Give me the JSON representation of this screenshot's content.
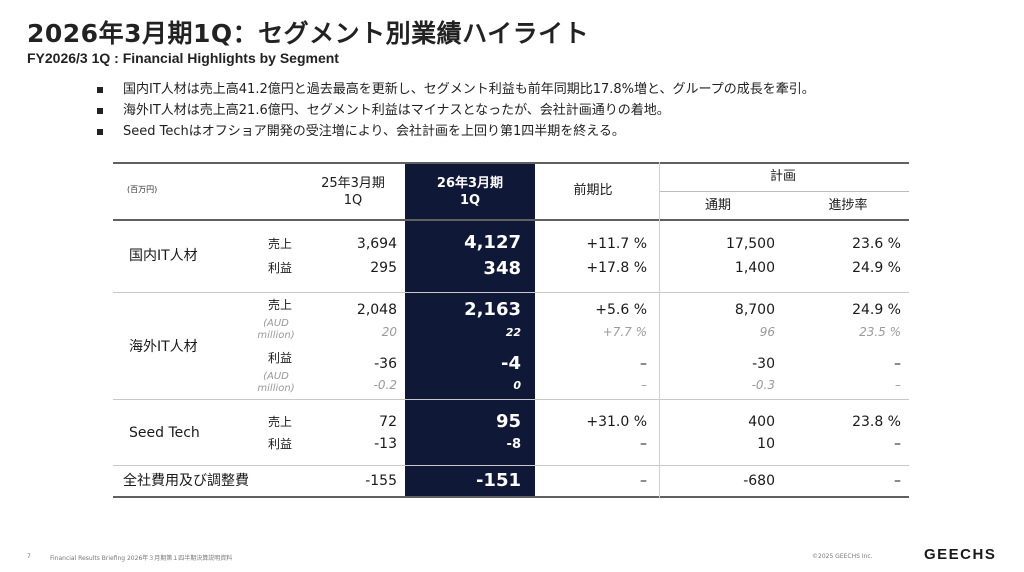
{
  "title": "2026年3月期1Q：セグメント別業績ハイライト",
  "subtitle": "FY2026/3 1Q : Financial Highlights by Segment",
  "bullets": [
    "国内IT人材は売上高41.2億円と過去最高を更新し、セグメント利益も前年同期比17.8%増と、グループの成長を牽引。",
    "海外IT人材は売上高21.6億円、セグメント利益はマイナスとなったが、会社計画通りの着地。",
    "Seed Techはオフショア開発の受注増により、会社計画を上回り第1四半期を終える。"
  ],
  "table": {
    "unit": "(百万円)",
    "headers": {
      "prev_line1": "25年3月期",
      "prev_line2": "1Q",
      "curr_line1": "26年3月期",
      "curr_line2": "1Q",
      "yoy": "前期比",
      "plan": "計画",
      "plan_full": "通期",
      "progress": "進捗率"
    },
    "segments": {
      "domestic": {
        "name": "国内IT人材",
        "sales": {
          "label": "売上",
          "prev": "3,694",
          "curr": "4,127",
          "yoy": "+11.7 %",
          "plan": "17,500",
          "progress": "23.6 %"
        },
        "profit": {
          "label": "利益",
          "prev": "295",
          "curr": "348",
          "yoy": "+17.8 %",
          "plan": "1,400",
          "progress": "24.9 %"
        }
      },
      "overseas": {
        "name": "海外IT人材",
        "sales": {
          "label": "売上",
          "prev": "2,048",
          "curr": "2,163",
          "yoy": "+5.6 %",
          "plan": "8,700",
          "progress": "24.9 %"
        },
        "sales_aud": {
          "label": "(AUD million)",
          "prev": "20",
          "curr": "22",
          "yoy": "+7.7 %",
          "plan": "96",
          "progress": "23.5 %"
        },
        "profit": {
          "label": "利益",
          "prev": "-36",
          "curr": "-4",
          "yoy": "–",
          "plan": "-30",
          "progress": "–"
        },
        "profit_aud": {
          "label": "(AUD million)",
          "prev": "-0.2",
          "curr": "0",
          "yoy": "–",
          "plan": "-0.3",
          "progress": "–"
        }
      },
      "seedtech": {
        "name": "Seed Tech",
        "sales": {
          "label": "売上",
          "prev": "72",
          "curr": "95",
          "yoy": "+31.0 %",
          "plan": "400",
          "progress": "23.8 %"
        },
        "profit": {
          "label": "利益",
          "prev": "-13",
          "curr": "-8",
          "yoy": "–",
          "plan": "10",
          "progress": "–"
        }
      },
      "corporate": {
        "name": "全社費用及び調整費",
        "prev": "-155",
        "curr": "-151",
        "yoy": "–",
        "plan": "-680",
        "progress": "–"
      }
    }
  },
  "footer": {
    "page": "7",
    "text": "Financial Results Briefing 2026年３月期第１四半期決算説明資料",
    "copyright": "©2025 GEECHS Inc.",
    "logo": "GEECHS"
  }
}
